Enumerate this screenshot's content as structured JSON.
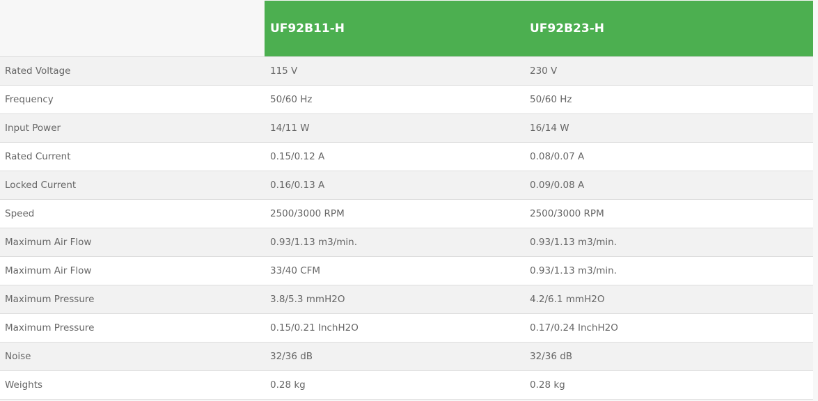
{
  "header": {
    "models": [
      "UF92B11-H",
      "UF92B23-H"
    ]
  },
  "accent_color": "#4caf50",
  "rows": [
    {
      "label": "Rated Voltage",
      "values": [
        "115 V",
        "230 V"
      ]
    },
    {
      "label": "Frequency",
      "values": [
        "50/60 Hz",
        "50/60 Hz"
      ]
    },
    {
      "label": "Input Power",
      "values": [
        "14/11 W",
        "16/14 W"
      ]
    },
    {
      "label": "Rated Current",
      "values": [
        "0.15/0.12 A",
        "0.08/0.07 A"
      ]
    },
    {
      "label": "Locked Current",
      "values": [
        "0.16/0.13 A",
        "0.09/0.08 A"
      ]
    },
    {
      "label": "Speed",
      "values": [
        "2500/3000 RPM",
        "2500/3000 RPM"
      ]
    },
    {
      "label": "Maximum Air Flow",
      "values": [
        "0.93/1.13 m3/min.",
        "0.93/1.13 m3/min."
      ]
    },
    {
      "label": "Maximum Air Flow",
      "values": [
        "33/40 CFM",
        "0.93/1.13 m3/min."
      ]
    },
    {
      "label": "Maximum Pressure",
      "values": [
        "3.8/5.3 mmH2O",
        "4.2/6.1 mmH2O"
      ]
    },
    {
      "label": "Maximum Pressure",
      "values": [
        "0.15/0.21 InchH2O",
        "0.17/0.24 InchH2O"
      ]
    },
    {
      "label": "Noise",
      "values": [
        "32/36 dB",
        "32/36 dB"
      ]
    },
    {
      "label": "Weights",
      "values": [
        "0.28 kg",
        "0.28 kg"
      ]
    }
  ]
}
